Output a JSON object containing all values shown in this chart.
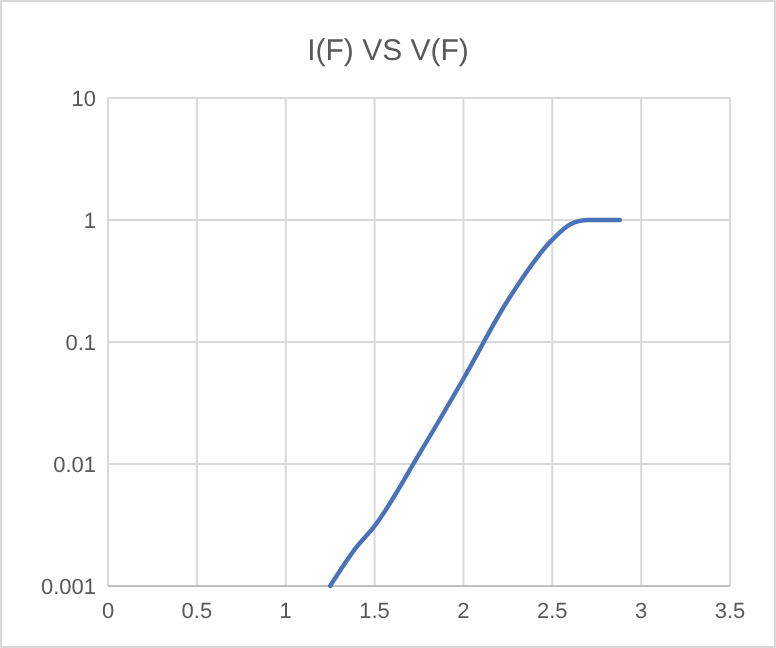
{
  "chart_data": {
    "type": "line",
    "title": "I(F) VS V(F)",
    "series": [
      {
        "color": "#4a72b8",
        "x": [
          1.25,
          1.4,
          1.5,
          1.75,
          2.0,
          2.25,
          2.5,
          2.6,
          2.7,
          2.88
        ],
        "values": [
          0.001,
          0.0021,
          0.0031,
          0.012,
          0.05,
          0.22,
          0.69,
          0.92,
          1,
          1
        ]
      }
    ],
    "xlim": [
      0,
      3.5
    ],
    "xticks": [
      0,
      0.5,
      1,
      1.5,
      2,
      2.5,
      3,
      3.5
    ],
    "ylim": [
      0.001,
      10
    ],
    "yticks": [
      0.001,
      0.01,
      0.1,
      1,
      10
    ],
    "log": "y",
    "grid": true,
    "marker": "none",
    "line_style": "solid"
  }
}
